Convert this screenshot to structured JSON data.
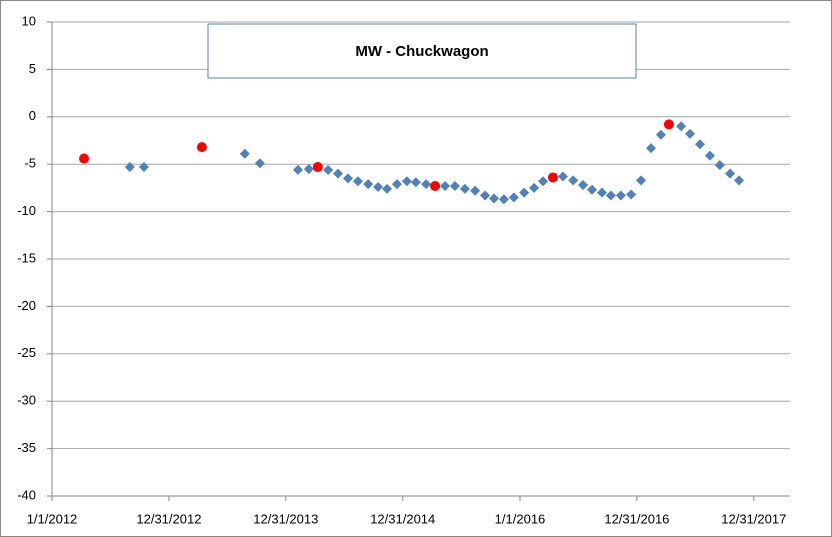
{
  "chart_data": {
    "type": "scatter",
    "title": "MW - Chuckwagon",
    "xlim": [
      "2012-01-01",
      "2018-04-23"
    ],
    "xticks": [
      {
        "value": "2012-01-01",
        "label": "1/1/2012"
      },
      {
        "value": "2012-12-31",
        "label": "12/31/2012"
      },
      {
        "value": "2013-12-31",
        "label": "12/31/2013"
      },
      {
        "value": "2014-12-31",
        "label": "12/31/2014"
      },
      {
        "value": "2016-01-01",
        "label": "1/1/2016"
      },
      {
        "value": "2016-12-31",
        "label": "12/31/2016"
      },
      {
        "value": "2017-12-31",
        "label": "12/31/2017"
      }
    ],
    "ylim": [
      -40,
      10
    ],
    "yticks": [
      -40,
      -35,
      -30,
      -25,
      -20,
      -15,
      -10,
      -5,
      0,
      5,
      10
    ],
    "grid": true,
    "series": [
      {
        "color": "#4f81bd",
        "marker": "diamond",
        "x": [
          "2012-08-31",
          "2012-10-14",
          "2013-08-25",
          "2013-10-11",
          "2014-02-07",
          "2014-03-13",
          "2014-05-12",
          "2014-06-12",
          "2014-07-13",
          "2014-08-13",
          "2014-09-14",
          "2014-10-15",
          "2014-11-12",
          "2014-12-13",
          "2015-01-13",
          "2015-02-10",
          "2015-03-14",
          "2015-05-12",
          "2015-06-12",
          "2015-07-13",
          "2015-08-14",
          "2015-09-14",
          "2015-10-12",
          "2015-11-12",
          "2015-12-13",
          "2016-01-14",
          "2016-02-14",
          "2016-03-13",
          "2016-05-14",
          "2016-06-15",
          "2016-07-16",
          "2016-08-13",
          "2016-09-13",
          "2016-10-11",
          "2016-11-11",
          "2016-12-13",
          "2017-01-13",
          "2017-02-13",
          "2017-03-16",
          "2017-05-18",
          "2017-06-15",
          "2017-07-16",
          "2017-08-16",
          "2017-09-16",
          "2017-10-18",
          "2017-11-15"
        ],
        "values": [
          -5.3,
          -5.3,
          -3.9,
          -4.9,
          -5.6,
          -5.5,
          -5.6,
          -6.0,
          -6.5,
          -6.8,
          -7.1,
          -7.4,
          -7.6,
          -7.1,
          -6.8,
          -6.9,
          -7.1,
          -7.3,
          -7.3,
          -7.6,
          -7.8,
          -8.3,
          -8.6,
          -8.7,
          -8.5,
          -8.0,
          -7.5,
          -6.8,
          -6.3,
          -6.7,
          -7.2,
          -7.7,
          -8.0,
          -8.3,
          -8.3,
          -8.2,
          -6.7,
          -3.3,
          -1.9,
          -1.0,
          -1.8,
          -2.9,
          -4.1,
          -5.1,
          -6.0,
          -6.7
        ]
      },
      {
        "color": "#ff0000",
        "marker": "circle",
        "x": [
          "2012-04-10",
          "2013-04-13",
          "2014-04-10",
          "2015-04-11",
          "2016-04-13",
          "2017-04-10"
        ],
        "values": [
          -4.4,
          -3.2,
          -5.3,
          -7.3,
          -6.4,
          -0.8
        ]
      }
    ]
  }
}
